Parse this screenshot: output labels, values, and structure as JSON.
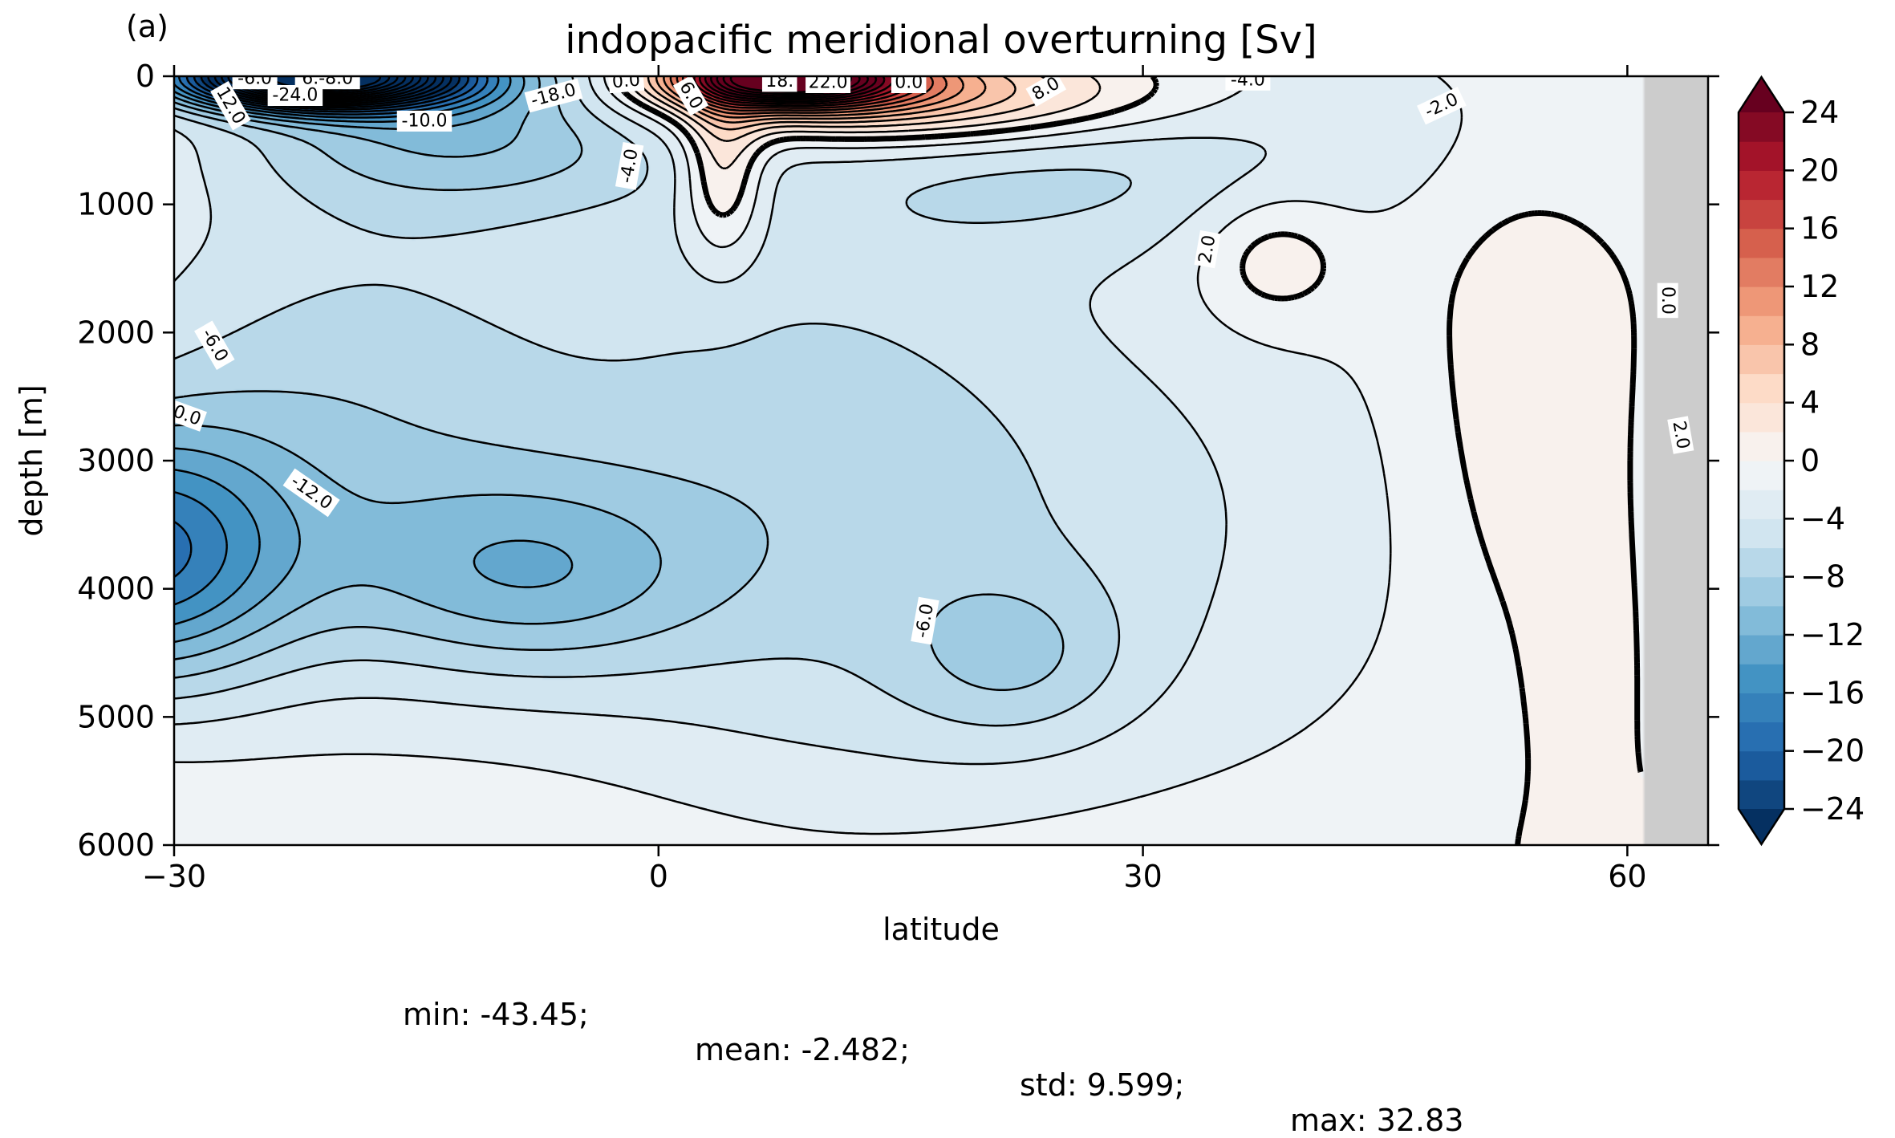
{
  "chart_data": {
    "type": "heatmap",
    "panel_label": "(a)",
    "title": "indopacific meridional overturning [Sv]",
    "xlabel": "latitude",
    "ylabel": "depth [m]",
    "xlim": [
      -30,
      65
    ],
    "ylim": [
      6000,
      0
    ],
    "x_ticks": [
      -30,
      0,
      30,
      60
    ],
    "x_tick_labels": [
      "−30",
      "0",
      "30",
      "60"
    ],
    "y_ticks": [
      0,
      1000,
      2000,
      3000,
      4000,
      5000,
      6000
    ],
    "y_tick_labels": [
      "0",
      "1000",
      "2000",
      "3000",
      "4000",
      "5000",
      "6000"
    ],
    "colorbar": {
      "vmin": -24,
      "vmax": 24,
      "step": 2,
      "extend": "both",
      "cmap": "RdBu_r",
      "ticks": [
        -24,
        -20,
        -16,
        -12,
        -8,
        -4,
        0,
        4,
        8,
        12,
        16,
        20,
        24
      ],
      "tick_labels": [
        "−24",
        "−20",
        "−16",
        "−12",
        "−8",
        "−4",
        "0",
        "4",
        "8",
        "12",
        "16",
        "20",
        "24"
      ]
    },
    "contour_labels": [
      "-6.0",
      "6.-8.0",
      "-24.0",
      "12.0",
      "-10.0",
      "-18.0",
      "0.0",
      "6.0",
      "18.",
      "22.0",
      "0.0",
      "8.0",
      "-4.0",
      "-2.0",
      "-4.0",
      "2.0",
      "0.0",
      "-6.0",
      "0.0",
      "-12.0",
      "-6.0",
      "2.0"
    ],
    "field_features": [
      {
        "kind": "min",
        "lat": -25,
        "depth": 30,
        "value": -43.45
      },
      {
        "kind": "max",
        "lat": 10,
        "depth": 40,
        "value": 32.83
      },
      {
        "kind": "cell",
        "lat": -27,
        "depth": 3750,
        "value": -16
      },
      {
        "kind": "cell",
        "lat": -8,
        "depth": 3900,
        "value": -13
      },
      {
        "kind": "cell",
        "lat": 23,
        "depth": 4550,
        "value": -7.5
      },
      {
        "kind": "cell",
        "lat": 37,
        "depth": 1450,
        "value": 2.5
      }
    ],
    "land_mask": "gray region north of about 61°N"
  },
  "stats": {
    "min": "min: -43.45;",
    "mean": "mean: -2.482;",
    "std": "std: 9.599;",
    "max": "max: 32.83"
  }
}
